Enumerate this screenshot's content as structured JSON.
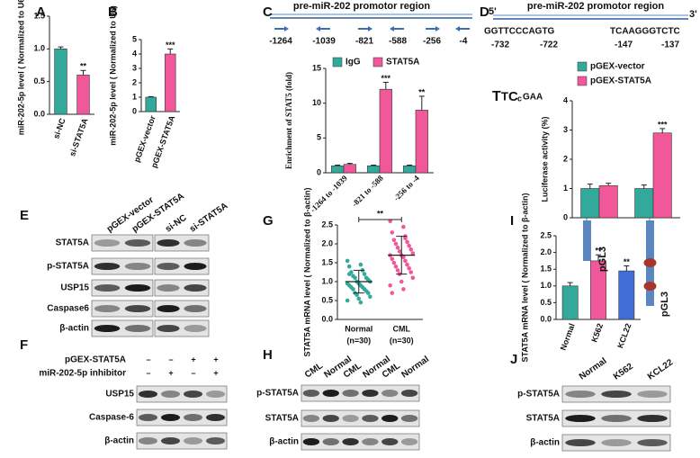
{
  "chart_data": [
    {
      "panel": "A",
      "type": "bar",
      "ylabel": "miR-202-5p level ( Normalized to U6)",
      "categories": [
        "si-NC",
        "si-STAT5A"
      ],
      "values": [
        1.0,
        0.6
      ],
      "errors": [
        0.03,
        0.07
      ],
      "colors": [
        "#33a99b",
        "#f0589a"
      ],
      "ylim": [
        0,
        1.5
      ],
      "yticks": [
        {
          "value": 0,
          "label": "0.0"
        },
        {
          "value": 0.5,
          "label": "0.5"
        },
        {
          "value": 1,
          "label": "1.0"
        },
        {
          "value": 1.5,
          "label": "1.5"
        }
      ],
      "annotations": [
        {
          "index": 1,
          "text": "**"
        }
      ]
    },
    {
      "panel": "B",
      "type": "bar",
      "ylabel": "miR-202-5p level ( Normalized to U6)",
      "categories": [
        "pGEX-vector",
        "pGEX-STAT5A"
      ],
      "values": [
        1.0,
        4.0
      ],
      "errors": [
        0.04,
        0.35
      ],
      "colors": [
        "#33a99b",
        "#f0589a"
      ],
      "ylim": [
        0,
        5
      ],
      "yticks": [
        0,
        1,
        2,
        3,
        4,
        5
      ],
      "annotations": [
        {
          "index": 1,
          "text": "***"
        }
      ]
    },
    {
      "panel": "C",
      "type": "bar",
      "ylabel": "Enrichment of STAT5 (fold)",
      "categories": [
        "-1264 to -1039",
        "-821 to -588",
        "-256 to -4"
      ],
      "series": [
        {
          "name": "IgG",
          "color": "#33a99b",
          "values": [
            1.0,
            1.0,
            1.0
          ],
          "errors": [
            0.1,
            0.1,
            0.1
          ]
        },
        {
          "name": "STAT5A",
          "color": "#f0589a",
          "values": [
            1.2,
            12.0,
            9.0
          ],
          "errors": [
            0.15,
            1.0,
            2.0
          ]
        }
      ],
      "ylim": [
        0,
        15
      ],
      "yticks": [
        0,
        5,
        10,
        15
      ],
      "annotations": [
        {
          "series": 1,
          "index": 1,
          "text": "***"
        },
        {
          "series": 1,
          "index": 2,
          "text": "**"
        }
      ]
    },
    {
      "panel": "D",
      "type": "bar",
      "ylabel": "Luciferase activity (%)",
      "categories": [
        null,
        null
      ],
      "series": [
        {
          "name": "pGEX-vector",
          "color": "#33a99b",
          "values": [
            1.0,
            1.0
          ],
          "errors": [
            0.15,
            0.12
          ]
        },
        {
          "name": "pGEX-STAT5A",
          "color": "#f0589a",
          "values": [
            1.1,
            2.9
          ],
          "errors": [
            0.08,
            0.15
          ]
        }
      ],
      "ylim": [
        0,
        4
      ],
      "yticks": [
        0,
        1,
        2,
        3,
        4
      ],
      "annotations": [
        {
          "series": 1,
          "index": 1,
          "text": "***"
        }
      ]
    },
    {
      "panel": "G",
      "type": "scatter",
      "ylabel": "STAT5A mRNA level ( Normalized to β-actin)",
      "categories": [
        "Normal",
        "CML"
      ],
      "sublabels": [
        "(n=30)",
        "(n=30)"
      ],
      "series": [
        {
          "name": "Normal",
          "color": "#33a99b",
          "mean": 1.0,
          "sd": 0.3,
          "values": [
            1.55,
            1.45,
            1.4,
            1.3,
            1.25,
            1.2,
            1.15,
            1.1,
            1.1,
            1.05,
            1.0,
            1.0,
            0.95,
            0.95,
            0.9,
            0.9,
            0.85,
            0.85,
            0.8,
            0.8,
            0.75,
            0.7,
            0.7,
            0.65,
            0.6,
            0.55,
            0.5,
            0.45,
            1.2,
            1.3
          ]
        },
        {
          "name": "CML",
          "color": "#f0589a",
          "mean": 1.7,
          "sd": 0.5,
          "values": [
            2.6,
            2.45,
            2.3,
            2.2,
            2.1,
            2.05,
            2.0,
            1.95,
            1.9,
            1.85,
            1.8,
            1.75,
            1.7,
            1.7,
            1.65,
            1.6,
            1.55,
            1.5,
            1.45,
            1.4,
            1.35,
            1.3,
            1.25,
            1.2,
            1.1,
            1.0,
            0.9,
            0.8,
            0.7,
            2.15
          ]
        }
      ],
      "ylim": [
        0,
        2.5
      ],
      "yticks": [
        {
          "value": 0,
          "label": "0.0"
        },
        {
          "value": 0.5,
          "label": "0.5"
        },
        {
          "value": 1,
          "label": "1.0"
        },
        {
          "value": 1.5,
          "label": "1.5"
        },
        {
          "value": 2,
          "label": "2.0"
        },
        {
          "value": 2.5,
          "label": "2.5"
        }
      ],
      "bracket": "**"
    },
    {
      "panel": "I",
      "type": "bar",
      "ylabel": "STAT5A mRNA level ( Normalized to β-actin)",
      "categories": [
        "Normal",
        "K562",
        "KCL22"
      ],
      "values": [
        1.0,
        1.75,
        1.45
      ],
      "errors": [
        0.1,
        0.18,
        0.15
      ],
      "colors": [
        "#33a99b",
        "#f0589a",
        "#3f6fd6"
      ],
      "ylim": [
        0,
        2.5
      ],
      "yticks": [
        {
          "value": 0,
          "label": "0.0"
        },
        {
          "value": 0.5,
          "label": "0.5"
        },
        {
          "value": 1,
          "label": "1.0"
        },
        {
          "value": 1.5,
          "label": "1.5"
        },
        {
          "value": 2,
          "label": "2.0"
        },
        {
          "value": 2.5,
          "label": "2.5"
        }
      ],
      "annotations": [
        {
          "index": 1,
          "text": "**"
        },
        {
          "index": 2,
          "text": "**"
        }
      ]
    }
  ],
  "diagrams": {
    "C": {
      "title": "pre-miR-202 promotor region",
      "positions": [
        "-1264",
        "-1039",
        "-821",
        "-588",
        "-256",
        "-4"
      ]
    },
    "D": {
      "title": "pre-miR-202 promotor region",
      "five": "5'",
      "three": "3'",
      "sites": [
        {
          "sequence": "GGTTCCCAGTG",
          "start": "-732",
          "end": "-722"
        },
        {
          "sequence": "TCAAGGGTCTC",
          "start": "-147",
          "end": "-137"
        }
      ],
      "constructs": [
        "pGL3",
        "pGL3"
      ]
    }
  },
  "blots": [
    {
      "panel": "E",
      "columns": [
        "pGEX-vector",
        "pGEX-STAT5A",
        "si-NC",
        "si-STAT5A"
      ],
      "rows": [
        "STAT5A",
        "p-STAT5A",
        "USP15",
        "Caspase6",
        "β-actin"
      ]
    },
    {
      "panel": "F",
      "conditions": [
        {
          "name": "pGEX-STAT5A",
          "signs": [
            "–",
            "–",
            "+",
            "+"
          ]
        },
        {
          "name": "miR-202-5p inhibitor",
          "signs": [
            "–",
            "+",
            "–",
            "+"
          ]
        }
      ],
      "rows": [
        "USP15",
        "Caspase-6",
        "β-actin"
      ]
    },
    {
      "panel": "H",
      "columns": [
        "CML",
        "Normal",
        "CML",
        "Normal",
        "CML",
        "Normal"
      ],
      "rows": [
        "p-STAT5A",
        "STAT5A",
        "β-actin"
      ]
    },
    {
      "panel": "J",
      "columns": [
        "Normal",
        "K562",
        "KCL22"
      ],
      "rows": [
        "p-STAT5A",
        "STAT5A",
        "β-actin"
      ]
    }
  ]
}
